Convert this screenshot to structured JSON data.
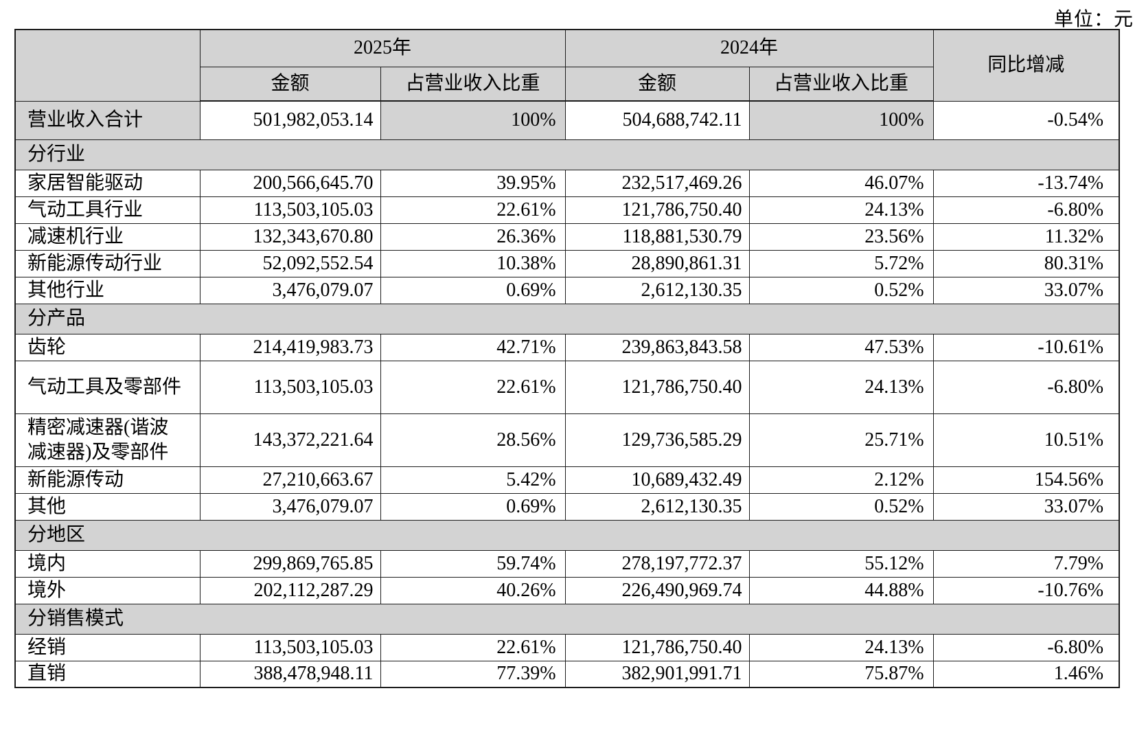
{
  "unit_label": "单位：元",
  "colors": {
    "header_bg": "#d3d3d3",
    "row_bg": "#ffffff",
    "border": "#1c1c1c"
  },
  "table": {
    "headers": {
      "year_2025": "2025年",
      "year_2024": "2024年",
      "amount": "金额",
      "share": "占营业收入比重",
      "yoy": "同比增减"
    },
    "total_row": {
      "label": "营业收入合计",
      "amount_2025": "501,982,053.14",
      "share_2025": "100%",
      "amount_2024": "504,688,742.11",
      "share_2024": "100%",
      "yoy": "-0.54%"
    },
    "sections": [
      {
        "title": "分行业",
        "rows": [
          {
            "label": "家居智能驱动",
            "amount_2025": "200,566,645.70",
            "share_2025": "39.95%",
            "amount_2024": "232,517,469.26",
            "share_2024": "46.07%",
            "yoy": "-13.74%"
          },
          {
            "label": "气动工具行业",
            "amount_2025": "113,503,105.03",
            "share_2025": "22.61%",
            "amount_2024": "121,786,750.40",
            "share_2024": "24.13%",
            "yoy": "-6.80%"
          },
          {
            "label": "减速机行业",
            "amount_2025": "132,343,670.80",
            "share_2025": "26.36%",
            "amount_2024": "118,881,530.79",
            "share_2024": "23.56%",
            "yoy": "11.32%"
          },
          {
            "label": "新能源传动行业",
            "amount_2025": "52,092,552.54",
            "share_2025": "10.38%",
            "amount_2024": "28,890,861.31",
            "share_2024": "5.72%",
            "yoy": "80.31%"
          },
          {
            "label": "其他行业",
            "amount_2025": "3,476,079.07",
            "share_2025": "0.69%",
            "amount_2024": "2,612,130.35",
            "share_2024": "0.52%",
            "yoy": "33.07%"
          }
        ]
      },
      {
        "title": "分产品",
        "rows": [
          {
            "label": "齿轮",
            "amount_2025": "214,419,983.73",
            "share_2025": "42.71%",
            "amount_2024": "239,863,843.58",
            "share_2024": "47.53%",
            "yoy": "-10.61%"
          },
          {
            "label": "气动工具及零部件",
            "amount_2025": "113,503,105.03",
            "share_2025": "22.61%",
            "amount_2024": "121,786,750.40",
            "share_2024": "24.13%",
            "yoy": "-6.80%"
          },
          {
            "label": "精密减速器(谐波减速器)及零部件",
            "amount_2025": "143,372,221.64",
            "share_2025": "28.56%",
            "amount_2024": "129,736,585.29",
            "share_2024": "25.71%",
            "yoy": "10.51%"
          },
          {
            "label": "新能源传动",
            "amount_2025": "27,210,663.67",
            "share_2025": "5.42%",
            "amount_2024": "10,689,432.49",
            "share_2024": "2.12%",
            "yoy": "154.56%"
          },
          {
            "label": "其他",
            "amount_2025": "3,476,079.07",
            "share_2025": "0.69%",
            "amount_2024": "2,612,130.35",
            "share_2024": "0.52%",
            "yoy": "33.07%"
          }
        ]
      },
      {
        "title": "分地区",
        "rows": [
          {
            "label": "境内",
            "amount_2025": "299,869,765.85",
            "share_2025": "59.74%",
            "amount_2024": "278,197,772.37",
            "share_2024": "55.12%",
            "yoy": "7.79%"
          },
          {
            "label": "境外",
            "amount_2025": "202,112,287.29",
            "share_2025": "40.26%",
            "amount_2024": "226,490,969.74",
            "share_2024": "44.88%",
            "yoy": "-10.76%"
          }
        ]
      },
      {
        "title": "分销售模式",
        "rows": [
          {
            "label": "经销",
            "amount_2025": "113,503,105.03",
            "share_2025": "22.61%",
            "amount_2024": "121,786,750.40",
            "share_2024": "24.13%",
            "yoy": "-6.80%"
          },
          {
            "label": "直销",
            "amount_2025": "388,478,948.11",
            "share_2025": "77.39%",
            "amount_2024": "382,901,991.71",
            "share_2024": "75.87%",
            "yoy": "1.46%"
          }
        ]
      }
    ]
  }
}
